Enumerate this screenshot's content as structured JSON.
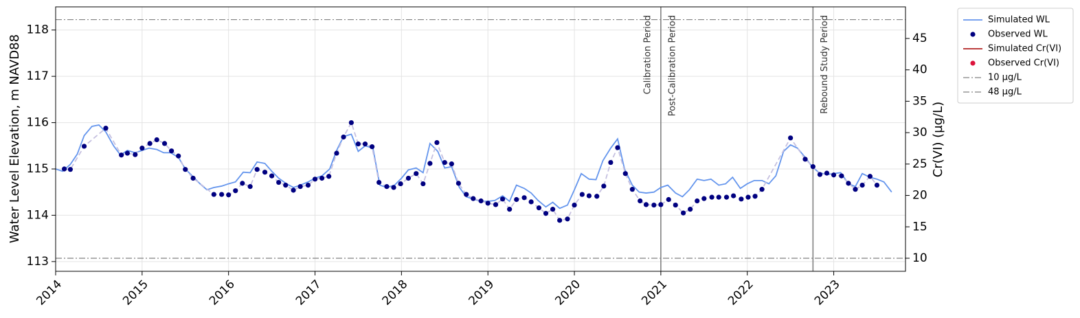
{
  "chart_data": {
    "type": "line",
    "y_label": "Water Level Elevation, m NAVD88",
    "y2_label": "Cr(VI) (µg/L)",
    "xlim": [
      2014,
      2023.83
    ],
    "xticks": [
      2014,
      2015,
      2016,
      2017,
      2018,
      2019,
      2020,
      2021,
      2022,
      2023
    ],
    "ylim": [
      112.79,
      118.5
    ],
    "yticks": [
      113,
      114,
      115,
      116,
      117,
      118
    ],
    "y2lim": [
      7.92,
      50.03
    ],
    "y2ticks": [
      10,
      15,
      20,
      25,
      30,
      35,
      40,
      45
    ],
    "grid": true,
    "legend": "outside right",
    "series": [
      {
        "name": "Simulated WL",
        "color": "#6495ed",
        "marker": "line",
        "x": [
          2014,
          2014.08,
          2014.17,
          2014.25,
          2014.33,
          2014.42,
          2014.5,
          2014.58,
          2014.67,
          2014.75,
          2014.83,
          2014.92,
          2015,
          2015.08,
          2015.17,
          2015.25,
          2015.33,
          2015.42,
          2015.5,
          2015.58,
          2015.67,
          2015.75,
          2015.83,
          2015.92,
          2016,
          2016.08,
          2016.17,
          2016.25,
          2016.33,
          2016.42,
          2016.5,
          2016.58,
          2016.67,
          2016.75,
          2016.83,
          2016.92,
          2017,
          2017.08,
          2017.17,
          2017.25,
          2017.33,
          2017.42,
          2017.5,
          2017.58,
          2017.67,
          2017.75,
          2017.83,
          2017.92,
          2018,
          2018.08,
          2018.17,
          2018.25,
          2018.33,
          2018.42,
          2018.5,
          2018.58,
          2018.67,
          2018.75,
          2018.83,
          2018.92,
          2019,
          2019.08,
          2019.17,
          2019.25,
          2019.33,
          2019.42,
          2019.5,
          2019.58,
          2019.67,
          2019.75,
          2019.83,
          2019.92,
          2020,
          2020.08,
          2020.17,
          2020.25,
          2020.33,
          2020.42,
          2020.5,
          2020.58,
          2020.67,
          2020.75,
          2020.83,
          2020.92,
          2021,
          2021.08,
          2021.17,
          2021.25,
          2021.33,
          2021.42,
          2021.5,
          2021.58,
          2021.67,
          2021.75,
          2021.83,
          2021.92,
          2022,
          2022.08,
          2022.17,
          2022.25,
          2022.33,
          2022.42,
          2022.5,
          2022.58,
          2022.67,
          2022.75,
          2022.83,
          2022.92,
          2023,
          2023.08,
          2023.17,
          2023.25,
          2023.33,
          2023.42,
          2023.5,
          2023.58,
          2023.67
        ],
        "values": [
          115.0,
          114.95,
          115.1,
          115.32,
          115.72,
          115.92,
          115.95,
          115.8,
          115.5,
          115.3,
          115.4,
          115.35,
          115.4,
          115.45,
          115.42,
          115.35,
          115.35,
          115.25,
          115.0,
          114.85,
          114.68,
          114.55,
          114.6,
          114.63,
          114.68,
          114.72,
          114.93,
          114.92,
          115.15,
          115.12,
          114.95,
          114.8,
          114.68,
          114.6,
          114.65,
          114.72,
          114.8,
          114.85,
          115.0,
          115.4,
          115.7,
          115.75,
          115.38,
          115.5,
          115.45,
          114.65,
          114.6,
          114.65,
          114.8,
          114.98,
          115.02,
          114.92,
          115.55,
          115.38,
          115.02,
          115.05,
          114.6,
          114.4,
          114.35,
          114.3,
          114.3,
          114.32,
          114.42,
          114.3,
          114.65,
          114.58,
          114.48,
          114.32,
          114.18,
          114.28,
          114.15,
          114.22,
          114.55,
          114.9,
          114.78,
          114.77,
          115.18,
          115.45,
          115.65,
          115.0,
          114.65,
          114.5,
          114.48,
          114.5,
          114.6,
          114.65,
          114.48,
          114.4,
          114.55,
          114.78,
          114.75,
          114.78,
          114.65,
          114.68,
          114.82,
          114.58,
          114.68,
          114.75,
          114.75,
          114.68,
          114.85,
          115.38,
          115.52,
          115.45,
          115.25,
          115.05,
          114.92,
          114.88,
          114.9,
          114.92,
          114.68,
          114.62,
          114.9,
          114.82,
          114.78,
          114.72,
          114.5
        ]
      },
      {
        "name": "Observed WL",
        "color": "#000080",
        "marker": "dot",
        "connector": "dashed",
        "connector_color": "#c5c0e0",
        "x": [
          2014.1,
          2014.17,
          2014.33,
          2014.58,
          2014.76,
          2014.83,
          2014.92,
          2015.0,
          2015.09,
          2015.17,
          2015.26,
          2015.34,
          2015.42,
          2015.5,
          2015.59,
          2015.83,
          2015.92,
          2016.0,
          2016.08,
          2016.16,
          2016.25,
          2016.33,
          2016.42,
          2016.5,
          2016.58,
          2016.66,
          2016.75,
          2016.83,
          2016.92,
          2017.0,
          2017.08,
          2017.16,
          2017.25,
          2017.33,
          2017.42,
          2017.5,
          2017.58,
          2017.66,
          2017.74,
          2017.83,
          2017.91,
          2017.99,
          2018.08,
          2018.17,
          2018.25,
          2018.33,
          2018.41,
          2018.5,
          2018.58,
          2018.66,
          2018.75,
          2018.83,
          2018.92,
          2019.0,
          2019.09,
          2019.17,
          2019.25,
          2019.33,
          2019.42,
          2019.5,
          2019.59,
          2019.67,
          2019.75,
          2019.83,
          2019.92,
          2020.0,
          2020.09,
          2020.17,
          2020.26,
          2020.34,
          2020.42,
          2020.5,
          2020.59,
          2020.67,
          2020.76,
          2020.83,
          2020.92,
          2021.0,
          2021.09,
          2021.17,
          2021.26,
          2021.34,
          2021.42,
          2021.5,
          2021.59,
          2021.67,
          2021.76,
          2021.84,
          2021.93,
          2022.01,
          2022.09,
          2022.17,
          2022.5,
          2022.67,
          2022.76,
          2022.84,
          2022.92,
          2023.0,
          2023.09,
          2023.17,
          2023.25,
          2023.33,
          2023.42,
          2023.5
        ],
        "values": [
          115.0,
          114.99,
          115.49,
          115.88,
          115.3,
          115.34,
          115.31,
          115.45,
          115.55,
          115.63,
          115.55,
          115.39,
          115.28,
          114.99,
          114.8,
          114.45,
          114.45,
          114.44,
          114.53,
          114.69,
          114.62,
          114.99,
          114.93,
          114.85,
          114.71,
          114.65,
          114.54,
          114.62,
          114.65,
          114.78,
          114.8,
          114.84,
          115.34,
          115.69,
          116.0,
          115.54,
          115.54,
          115.48,
          114.71,
          114.62,
          114.6,
          114.68,
          114.8,
          114.9,
          114.68,
          115.12,
          115.57,
          115.14,
          115.11,
          114.69,
          114.45,
          114.36,
          114.31,
          114.26,
          114.23,
          114.35,
          114.13,
          114.34,
          114.38,
          114.29,
          114.16,
          114.04,
          114.13,
          113.89,
          113.92,
          114.22,
          114.45,
          114.42,
          114.41,
          114.63,
          115.14,
          115.46,
          114.9,
          114.56,
          114.31,
          114.23,
          114.22,
          114.23,
          114.34,
          114.22,
          114.05,
          114.13,
          114.31,
          114.36,
          114.39,
          114.39,
          114.39,
          114.42,
          114.35,
          114.39,
          114.41,
          114.56,
          115.67,
          115.21,
          115.05,
          114.88,
          114.91,
          114.87,
          114.85,
          114.69,
          114.56,
          114.65,
          114.84,
          114.65
        ]
      },
      {
        "name": "Simulated Cr(VI)",
        "color": "#b22222",
        "marker": "line",
        "axis": "y2",
        "x": [],
        "values": []
      },
      {
        "name": "Observed Cr(VI)",
        "color": "#dc143c",
        "marker": "dot",
        "axis": "y2",
        "x": [],
        "values": []
      }
    ],
    "reference_lines": [
      {
        "name": "10 µg/L",
        "value": 10,
        "axis": "y2",
        "color": "#808080"
      },
      {
        "name": "48 µg/L",
        "value": 48,
        "axis": "y2",
        "color": "#808080"
      }
    ],
    "period_lines": [
      {
        "x": 2021.0,
        "left_label": "Calibration Period",
        "right_label": "Post-Calibration Period"
      },
      {
        "x": 2022.76,
        "right_label": "Rebound Study Period"
      }
    ]
  }
}
